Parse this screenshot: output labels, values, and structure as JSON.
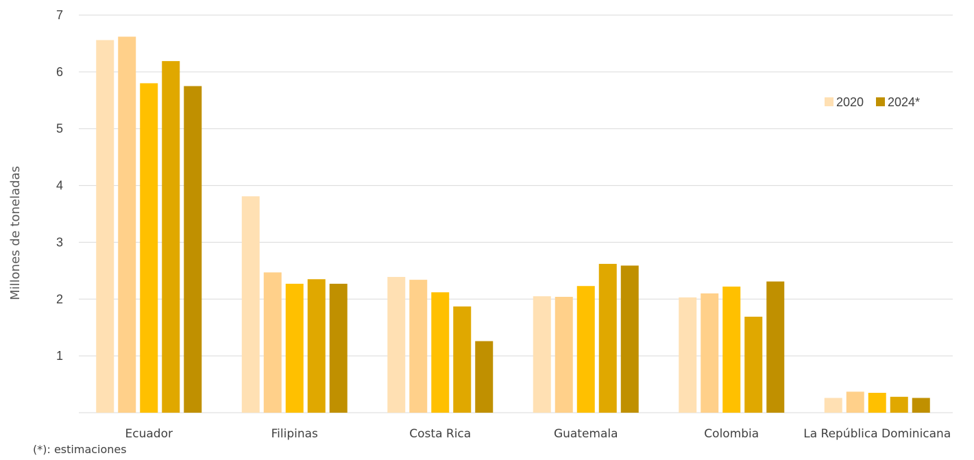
{
  "chart_data": {
    "type": "bar",
    "title": "",
    "xlabel": "",
    "ylabel": "Millones de toneladas",
    "ylim": [
      0,
      7
    ],
    "yticks": [
      1,
      2,
      3,
      4,
      5,
      6,
      7
    ],
    "grid": true,
    "legend_position": "right",
    "categories": [
      "Ecuador",
      "Filipinas",
      "Costa Rica",
      "Guatemala",
      "Colombia",
      "La República Dominicana"
    ],
    "series": [
      {
        "color": "#FFE0B3",
        "values": [
          6.56,
          3.81,
          2.39,
          2.05,
          2.03,
          0.26
        ]
      },
      {
        "color": "#FFD08A",
        "values": [
          6.62,
          2.47,
          2.34,
          2.04,
          2.1,
          0.37
        ]
      },
      {
        "color": "#FFC000",
        "values": [
          5.8,
          2.27,
          2.12,
          2.23,
          2.22,
          0.35
        ]
      },
      {
        "color": "#E0A800",
        "values": [
          6.19,
          2.35,
          1.87,
          2.62,
          1.69,
          0.28
        ]
      },
      {
        "color": "#C09000",
        "values": [
          5.75,
          2.27,
          1.26,
          2.59,
          2.31,
          0.26
        ]
      }
    ],
    "legend": [
      {
        "label": "2020",
        "color": "#FFE0B3"
      },
      {
        "label": "2024*",
        "color": "#C09000"
      }
    ],
    "footnote": "(*): estimaciones"
  }
}
